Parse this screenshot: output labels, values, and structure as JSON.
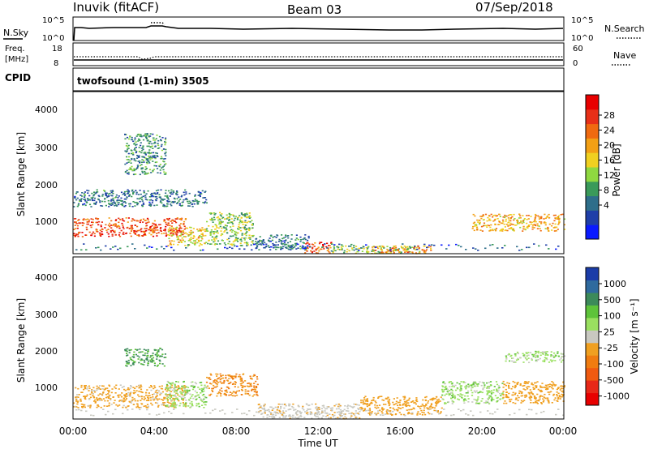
{
  "header": {
    "station": "Inuvik (fitACF)",
    "beam": "Beam 03",
    "date": "07/Sep/2018"
  },
  "strips": {
    "nsky_label": "N.Sky",
    "nsky_ticks": [
      "10^5",
      "10^0"
    ],
    "nsearch_label": "N.Search",
    "nsearch_ticks": [
      "10^5",
      "10^0"
    ],
    "freq_label_line1": "Freq.",
    "freq_label_line2": "[MHz]",
    "freq_ticks": [
      "18",
      "8"
    ],
    "nave_label": "Nave",
    "nave_ticks": [
      "60",
      "0"
    ],
    "cpid_label": "CPID",
    "cpid_text": "twofsound (1-min) 3505"
  },
  "panels": {
    "ylabel": "Slant Range [km]",
    "yticks": [
      "4000",
      "3000",
      "2000",
      "1000"
    ],
    "xticks": [
      "00:00",
      "04:00",
      "08:00",
      "12:00",
      "16:00",
      "20:00",
      "00:00"
    ],
    "xlabel": "Time UT"
  },
  "colorbars": {
    "power_label": "Power [dB]",
    "power_ticks": [
      "28",
      "24",
      "20",
      "16",
      "12",
      "8",
      "4"
    ],
    "power_colors": [
      "#0a1aff",
      "#1f3fa8",
      "#2e6e8a",
      "#3a9a5a",
      "#8fd840",
      "#f0d020",
      "#f3a015",
      "#f06a10",
      "#e83018",
      "#e80000"
    ],
    "velocity_label": "Velocity [m s⁻¹]",
    "velocity_ticks": [
      "1000",
      "500",
      "100",
      "25",
      "-25",
      "-100",
      "-500",
      "-1000"
    ],
    "velocity_colors": [
      "#1b3ca8",
      "#2f6a9e",
      "#3c8a5a",
      "#5ec33a",
      "#9ae060",
      "#c8c8c0",
      "#f0a020",
      "#f07c10",
      "#f05a10",
      "#e82818",
      "#e80000"
    ]
  },
  "chart_data": [
    {
      "type": "heatmap",
      "title": "Inuvik (fitACF) Beam 03 07/Sep/2018",
      "quantity": "Power [dB]",
      "xlabel": "Time UT",
      "ylabel": "Slant Range [km]",
      "x_range_hours": [
        0,
        24
      ],
      "y_range_km": [
        180,
        4500
      ],
      "color_range": [
        0,
        32
      ],
      "colorbar_ticks": [
        4,
        8,
        12,
        16,
        20,
        24,
        28
      ],
      "regions": [
        {
          "t0": 0.0,
          "t1": 5.5,
          "r0": 650,
          "r1": 1150,
          "value": 26
        },
        {
          "t0": 4.6,
          "t1": 6.5,
          "r0": 400,
          "r1": 900,
          "value": 18
        },
        {
          "t0": 6.5,
          "t1": 8.8,
          "r0": 400,
          "r1": 1300,
          "value": 14
        },
        {
          "t0": 8.8,
          "t1": 11.5,
          "r0": 300,
          "r1": 700,
          "value": 8
        },
        {
          "t0": 11.3,
          "t1": 12.6,
          "r0": 200,
          "r1": 500,
          "value": 26
        },
        {
          "t0": 12.6,
          "t1": 17.0,
          "r0": 200,
          "r1": 400,
          "value": 14
        },
        {
          "t0": 14.5,
          "t1": 17.5,
          "r0": 200,
          "r1": 400,
          "value": 22
        },
        {
          "t0": 19.5,
          "t1": 24.0,
          "r0": 800,
          "r1": 1250,
          "value": 20
        },
        {
          "t0": 2.5,
          "t1": 4.5,
          "r0": 2300,
          "r1": 3400,
          "value": 10
        },
        {
          "t0": 0.0,
          "t1": 6.5,
          "r0": 1450,
          "r1": 1900,
          "value": 8
        }
      ]
    },
    {
      "type": "heatmap",
      "title": "",
      "quantity": "Velocity [m s-1]",
      "xlabel": "Time UT",
      "ylabel": "Slant Range [km]",
      "x_range_hours": [
        0,
        24
      ],
      "y_range_km": [
        180,
        4500
      ],
      "colorbar_ticks": [
        1000,
        500,
        100,
        25,
        -25,
        -100,
        -500,
        -1000
      ],
      "regions": [
        {
          "t0": 0.0,
          "t1": 5.5,
          "r0": 500,
          "r1": 1100,
          "value": -150
        },
        {
          "t0": 2.5,
          "t1": 4.5,
          "r0": 1600,
          "r1": 2100,
          "value": 120
        },
        {
          "t0": 4.5,
          "t1": 6.5,
          "r0": 500,
          "r1": 1200,
          "value": 0
        },
        {
          "t0": 6.5,
          "t1": 9.0,
          "r0": 800,
          "r1": 1400,
          "value": -600
        },
        {
          "t0": 9.0,
          "t1": 14.0,
          "r0": 200,
          "r1": 600,
          "value": -80
        },
        {
          "t0": 14.0,
          "t1": 18.0,
          "r0": 300,
          "r1": 800,
          "value": -200
        },
        {
          "t0": 18.0,
          "t1": 21.0,
          "r0": 600,
          "r1": 1200,
          "value": 0
        },
        {
          "t0": 21.0,
          "t1": 24.0,
          "r0": 600,
          "r1": 1200,
          "value": -300
        },
        {
          "t0": 21.0,
          "t1": 24.0,
          "r0": 1700,
          "r1": 2000,
          "value": 0
        }
      ]
    }
  ]
}
